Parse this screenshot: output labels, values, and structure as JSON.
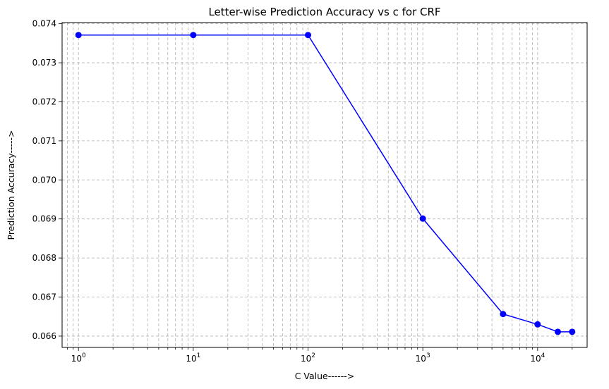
{
  "chart_data": {
    "type": "line",
    "title": "Letter-wise Prediction Accuracy vs c for CRF",
    "xlabel": "C Value------>",
    "ylabel": "Prediction Accuracy----->",
    "xscale": "log",
    "xlim": [
      0.72,
      27000
    ],
    "ylim": [
      0.06571,
      0.07403
    ],
    "grid": true,
    "grid_style": "dashed",
    "x_ticks": [
      {
        "base": "10",
        "exp": "0",
        "value": 1
      },
      {
        "base": "10",
        "exp": "1",
        "value": 10
      },
      {
        "base": "10",
        "exp": "2",
        "value": 100
      },
      {
        "base": "10",
        "exp": "3",
        "value": 1000
      },
      {
        "base": "10",
        "exp": "4",
        "value": 10000
      }
    ],
    "y_ticks": [
      "0.066",
      "0.067",
      "0.068",
      "0.069",
      "0.070",
      "0.071",
      "0.072",
      "0.073",
      "0.074"
    ],
    "series": [
      {
        "color": "#0000ff",
        "marker": "circle",
        "x": [
          1,
          10,
          100,
          1000,
          5000,
          10000,
          15000,
          20000
        ],
        "y": [
          0.07371,
          0.07371,
          0.07371,
          0.06901,
          0.066565,
          0.0663,
          0.06611,
          0.06611
        ]
      }
    ]
  }
}
